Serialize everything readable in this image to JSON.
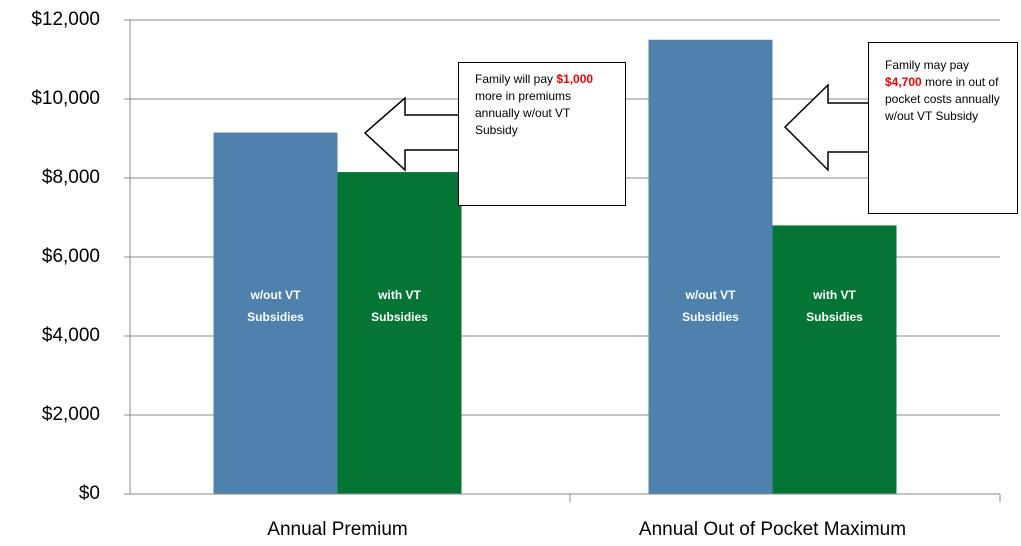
{
  "chart_data": {
    "type": "bar",
    "categories": [
      "Annual Premium",
      "Annual Out of Pocket Maximum"
    ],
    "series": [
      {
        "name": "w/out VT Subsidies",
        "color": "#4f81ad",
        "values": [
          9150,
          11500
        ]
      },
      {
        "name": "with VT Subsidies",
        "color": "#057535",
        "values": [
          8150,
          6800
        ]
      }
    ],
    "ylim": [
      0,
      12000
    ],
    "yticks": [
      {
        "value": 0,
        "label": "$0"
      },
      {
        "value": 2000,
        "label": "$2,000"
      },
      {
        "value": 4000,
        "label": "$4,000"
      },
      {
        "value": 6000,
        "label": "$6,000"
      },
      {
        "value": 8000,
        "label": "$8,000"
      },
      {
        "value": 10000,
        "label": "$10,000"
      },
      {
        "value": 12000,
        "label": "$12,000"
      }
    ],
    "grid": true,
    "annotations": [
      {
        "text_before": "Family will pay",
        "highlight": "$1,000",
        "text_after": "more in premiums annually w/out VT Subsidy"
      },
      {
        "text_before": "Family may pay",
        "highlight": "$4,700",
        "text_after": "more in out of pocket costs annually w/out VT Subsidy"
      }
    ]
  }
}
